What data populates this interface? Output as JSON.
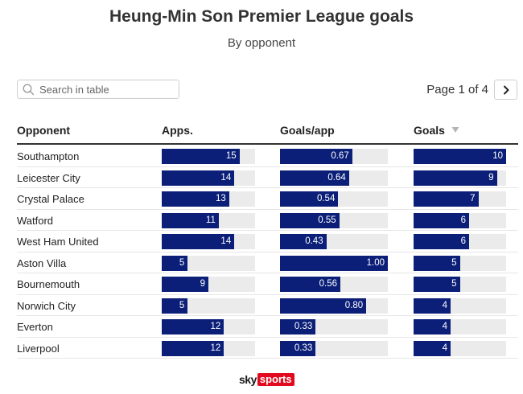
{
  "title": "Heung-Min Son Premier League goals",
  "subtitle": "By opponent",
  "search": {
    "placeholder": "Search in table",
    "icon": "search-icon"
  },
  "pagination": {
    "label": "Page 1 of 4",
    "next_icon": "chevron-right-icon"
  },
  "columns": {
    "opponent": "Opponent",
    "apps": "Apps.",
    "goals_per_app": "Goals/app",
    "goals": "Goals",
    "sorted_by": "goals",
    "sort_direction": "descending"
  },
  "scales": {
    "apps_max": 18,
    "goals_per_app_max": 1.0,
    "goals_max": 10
  },
  "colors": {
    "bar": "#0b1f78",
    "track": "#ebebeb",
    "brand_red": "#e10a1e"
  },
  "rows": [
    {
      "opponent": "Southampton",
      "apps": 15,
      "apps_label": "15",
      "gpa": 0.67,
      "gpa_label": "0.67",
      "goals": 10,
      "goals_label": "10"
    },
    {
      "opponent": "Leicester City",
      "apps": 14,
      "apps_label": "14",
      "gpa": 0.64,
      "gpa_label": "0.64",
      "goals": 9,
      "goals_label": "9"
    },
    {
      "opponent": "Crystal Palace",
      "apps": 13,
      "apps_label": "13",
      "gpa": 0.54,
      "gpa_label": "0.54",
      "goals": 7,
      "goals_label": "7"
    },
    {
      "opponent": "Watford",
      "apps": 11,
      "apps_label": "11",
      "gpa": 0.55,
      "gpa_label": "0.55",
      "goals": 6,
      "goals_label": "6"
    },
    {
      "opponent": "West Ham United",
      "apps": 14,
      "apps_label": "14",
      "gpa": 0.43,
      "gpa_label": "0.43",
      "goals": 6,
      "goals_label": "6"
    },
    {
      "opponent": "Aston Villa",
      "apps": 5,
      "apps_label": "5",
      "gpa": 1.0,
      "gpa_label": "1.00",
      "goals": 5,
      "goals_label": "5"
    },
    {
      "opponent": "Bournemouth",
      "apps": 9,
      "apps_label": "9",
      "gpa": 0.56,
      "gpa_label": "0.56",
      "goals": 5,
      "goals_label": "5"
    },
    {
      "opponent": "Norwich City",
      "apps": 5,
      "apps_label": "5",
      "gpa": 0.8,
      "gpa_label": "0.80",
      "goals": 4,
      "goals_label": "4"
    },
    {
      "opponent": "Everton",
      "apps": 12,
      "apps_label": "12",
      "gpa": 0.33,
      "gpa_label": "0.33",
      "goals": 4,
      "goals_label": "4"
    },
    {
      "opponent": "Liverpool",
      "apps": 12,
      "apps_label": "12",
      "gpa": 0.33,
      "gpa_label": "0.33",
      "goals": 4,
      "goals_label": "4"
    }
  ],
  "logo": {
    "sky": "sky",
    "sports": "sports"
  }
}
